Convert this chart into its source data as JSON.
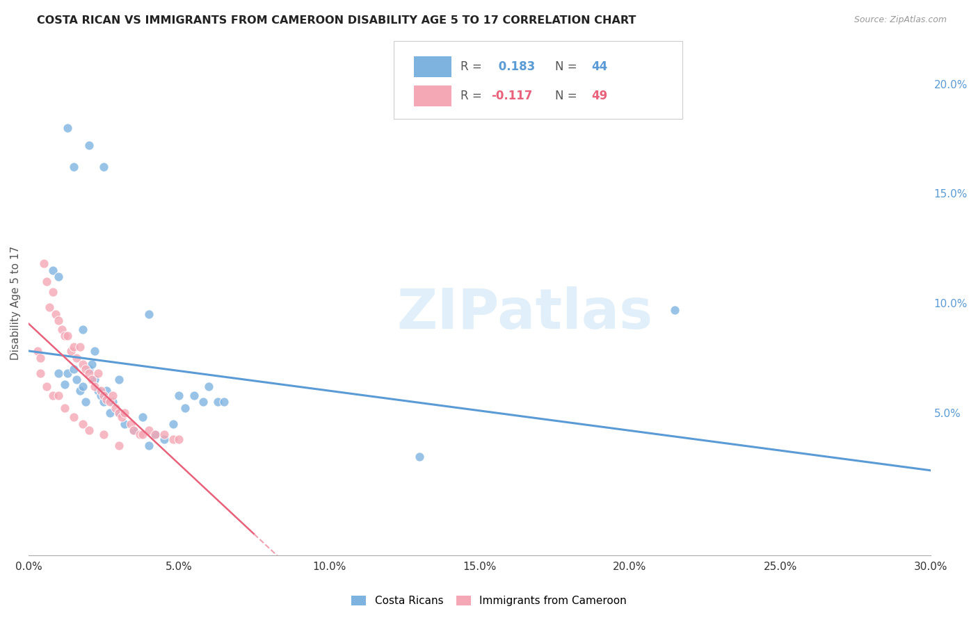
{
  "title": "COSTA RICAN VS IMMIGRANTS FROM CAMEROON DISABILITY AGE 5 TO 17 CORRELATION CHART",
  "source": "Source: ZipAtlas.com",
  "xlabel_ticks": [
    "0.0%",
    "5.0%",
    "10.0%",
    "15.0%",
    "20.0%",
    "25.0%",
    "30.0%"
  ],
  "xlabel_values": [
    0.0,
    0.05,
    0.1,
    0.15,
    0.2,
    0.25,
    0.3
  ],
  "ylabel": "Disability Age 5 to 17",
  "ylabel_ticks": [
    "5.0%",
    "10.0%",
    "15.0%",
    "20.0%"
  ],
  "ylabel_values": [
    0.05,
    0.1,
    0.15,
    0.2
  ],
  "xlim": [
    0.0,
    0.3
  ],
  "ylim": [
    -0.015,
    0.215
  ],
  "cr_color": "#7EB3E0",
  "cam_color": "#F4A7B5",
  "cr_line_color": "#5B9BD5",
  "cam_line_color": "#E8607A",
  "cam_dash_color": "#F0A0B0",
  "cr_R": 0.183,
  "cr_N": 44,
  "cam_R": -0.117,
  "cam_N": 49,
  "watermark": "ZIPatlas",
  "background_color": "#FFFFFF",
  "grid_color": "#BBBBBB",
  "costa_ricans_x": [
    0.01,
    0.012,
    0.013,
    0.015,
    0.016,
    0.017,
    0.018,
    0.019,
    0.02,
    0.021,
    0.022,
    0.023,
    0.024,
    0.025,
    0.026,
    0.027,
    0.028,
    0.03,
    0.032,
    0.035,
    0.038,
    0.04,
    0.042,
    0.045,
    0.048,
    0.05,
    0.052,
    0.055,
    0.058,
    0.06,
    0.063,
    0.065,
    0.008,
    0.01,
    0.013,
    0.015,
    0.02,
    0.025,
    0.018,
    0.022,
    0.03,
    0.04,
    0.215,
    0.13
  ],
  "costa_ricans_y": [
    0.068,
    0.063,
    0.068,
    0.07,
    0.065,
    0.06,
    0.062,
    0.055,
    0.07,
    0.072,
    0.065,
    0.06,
    0.058,
    0.055,
    0.06,
    0.05,
    0.055,
    0.05,
    0.045,
    0.042,
    0.048,
    0.035,
    0.04,
    0.038,
    0.045,
    0.058,
    0.052,
    0.058,
    0.055,
    0.062,
    0.055,
    0.055,
    0.115,
    0.112,
    0.18,
    0.162,
    0.172,
    0.162,
    0.088,
    0.078,
    0.065,
    0.095,
    0.097,
    0.03
  ],
  "cameroon_x": [
    0.003,
    0.004,
    0.005,
    0.006,
    0.007,
    0.008,
    0.009,
    0.01,
    0.011,
    0.012,
    0.013,
    0.014,
    0.015,
    0.016,
    0.017,
    0.018,
    0.019,
    0.02,
    0.021,
    0.022,
    0.023,
    0.024,
    0.025,
    0.026,
    0.027,
    0.028,
    0.029,
    0.03,
    0.031,
    0.032,
    0.034,
    0.035,
    0.037,
    0.038,
    0.04,
    0.042,
    0.045,
    0.048,
    0.05,
    0.004,
    0.006,
    0.008,
    0.01,
    0.012,
    0.015,
    0.018,
    0.02,
    0.025,
    0.03
  ],
  "cameroon_y": [
    0.078,
    0.075,
    0.118,
    0.11,
    0.098,
    0.105,
    0.095,
    0.092,
    0.088,
    0.085,
    0.085,
    0.078,
    0.08,
    0.075,
    0.08,
    0.072,
    0.07,
    0.068,
    0.065,
    0.062,
    0.068,
    0.06,
    0.058,
    0.056,
    0.055,
    0.058,
    0.052,
    0.05,
    0.048,
    0.05,
    0.045,
    0.042,
    0.04,
    0.04,
    0.042,
    0.04,
    0.04,
    0.038,
    0.038,
    0.068,
    0.062,
    0.058,
    0.058,
    0.052,
    0.048,
    0.045,
    0.042,
    0.04,
    0.035
  ]
}
